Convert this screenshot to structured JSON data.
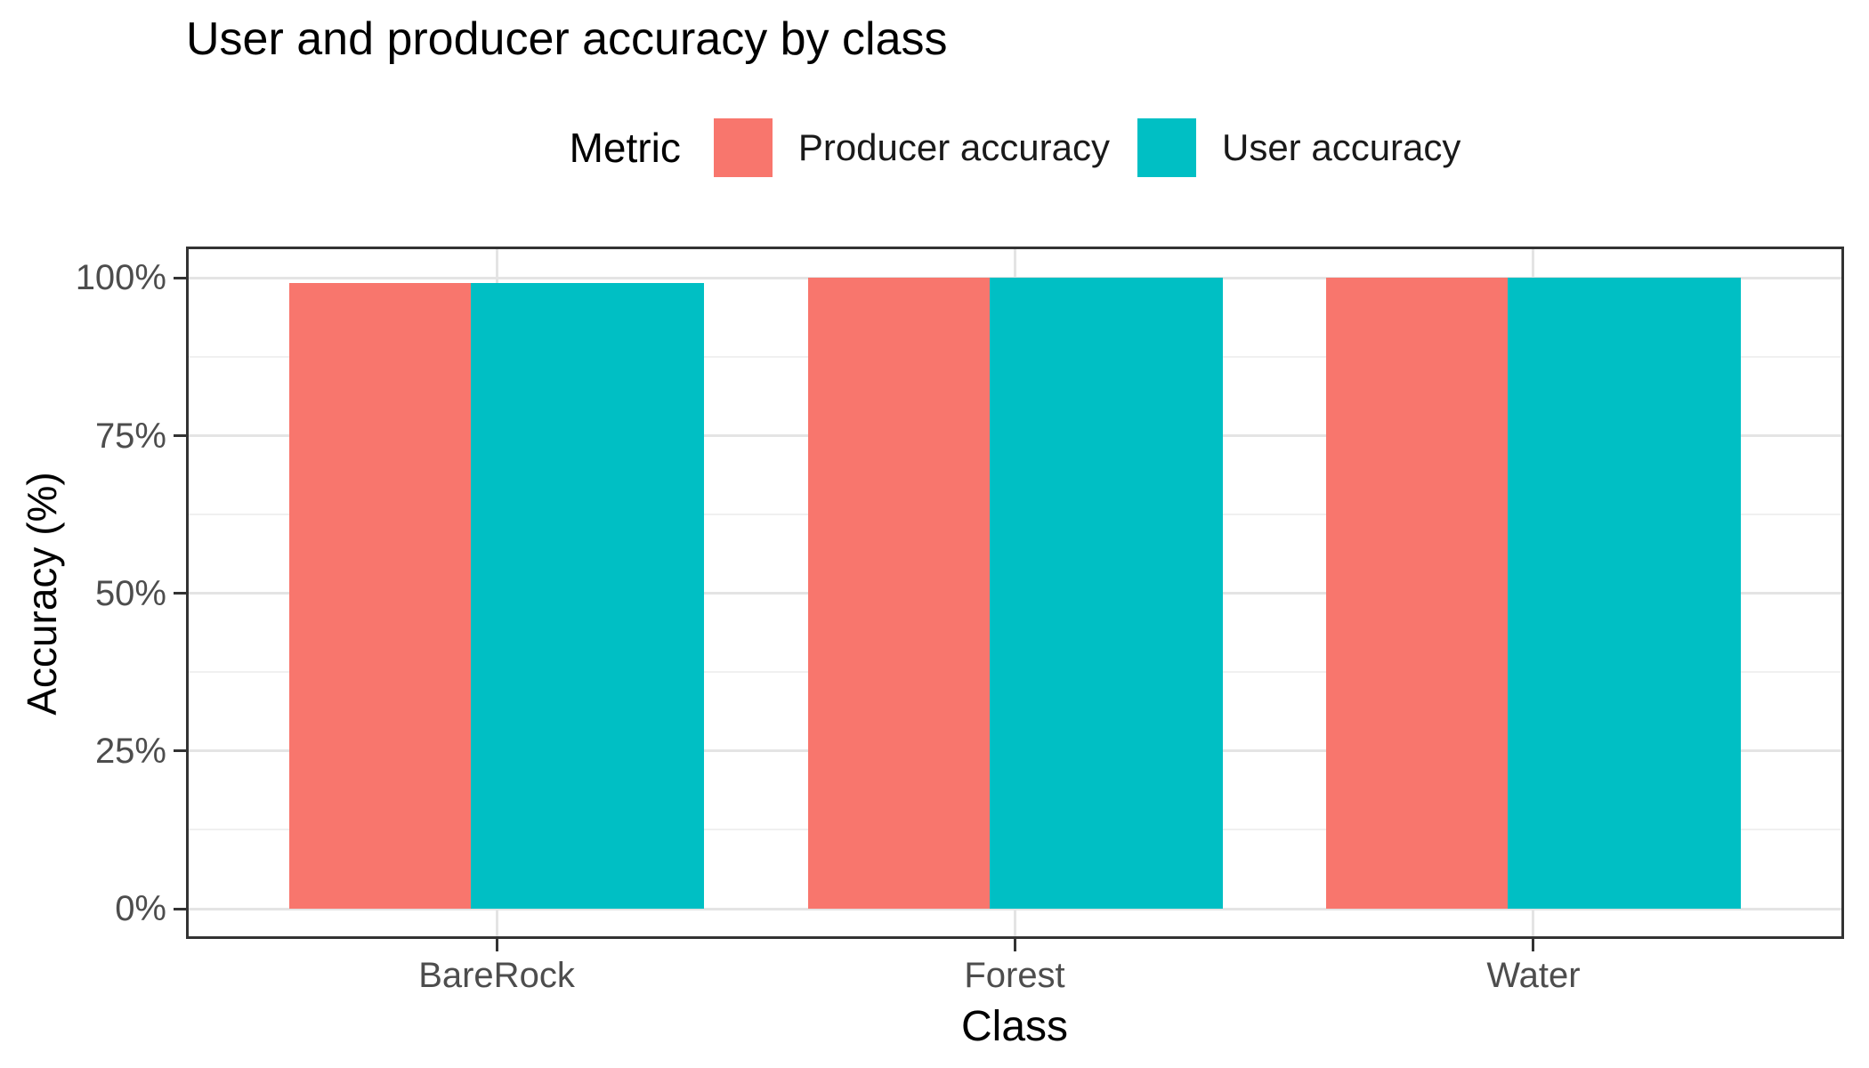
{
  "chart_data": {
    "type": "bar",
    "title": "User and producer accuracy by class",
    "xlabel": "Class",
    "ylabel": "Accuracy (%)",
    "legend_title": "Metric",
    "legend_position": "top",
    "categories": [
      "BareRock",
      "Forest",
      "Water"
    ],
    "series": [
      {
        "name": "Producer accuracy",
        "color": "#F8766D",
        "values": [
          99.2,
          100,
          100
        ]
      },
      {
        "name": "User accuracy",
        "color": "#00BFC4",
        "values": [
          99.2,
          100,
          100
        ]
      }
    ],
    "y_ticks": {
      "labels": [
        "0%",
        "25%",
        "50%",
        "75%",
        "100%"
      ],
      "values": [
        0,
        25,
        50,
        75,
        100
      ]
    },
    "ylim": [
      0,
      100
    ],
    "grid": "horizontal major+minor, vertical major at category centers",
    "legend_entries": [
      "Producer accuracy",
      "User accuracy"
    ],
    "colors": {
      "grid_major": "#E4E4E4",
      "grid_minor": "#F0F0F0",
      "panel_border": "#333333",
      "tick": "#333333",
      "tick_label": "#4D4D4D",
      "text": "#000000",
      "background": "#FFFFFF"
    }
  }
}
